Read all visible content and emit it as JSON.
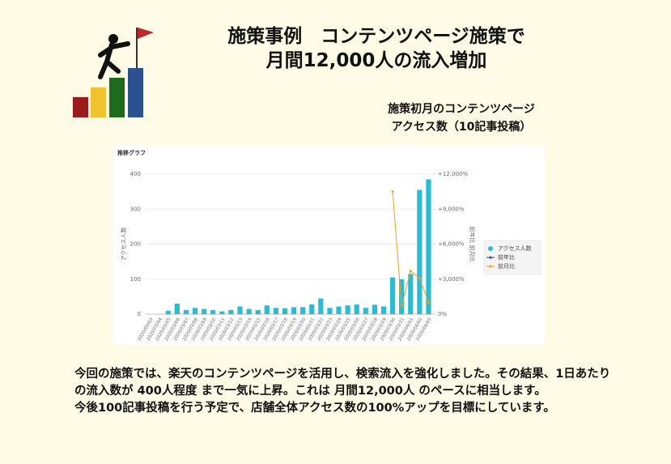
{
  "header": {
    "title_lines": [
      "施策事例　コンテンツページ施策で",
      "月間12,000人の流入増加"
    ]
  },
  "caption": {
    "lines": [
      "施策初月のコンテンツページ",
      "アクセス数（10記事投稿）"
    ]
  },
  "body": {
    "paragraphs": [
      "今回の施策では、楽天のコンテンツページを活用し、検索流入を強化しました。その結果、1日あたりの流入数が 400人程度 まで一気に上昇。これは 月間12,000人 のペースに相当します。",
      "今後100記事投稿を行う予定で、店舗全体アクセス数の100%アップを目標にしています。"
    ]
  },
  "chart_data": {
    "type": "bar",
    "title": "推移グラフ",
    "y_label": "アクセス人数",
    "y2_label": "前年比 前月比",
    "categories": [
      "2020/03/03",
      "2020/03/04",
      "2020/03/05",
      "2020/03/06",
      "2020/03/07",
      "2020/03/08",
      "2020/03/09",
      "2020/03/10",
      "2020/03/11",
      "2020/03/12",
      "2020/03/13",
      "2020/03/14",
      "2020/03/15",
      "2020/03/16",
      "2020/03/17",
      "2020/03/18",
      "2020/03/19",
      "2020/03/20",
      "2020/03/21",
      "2020/03/22",
      "2020/03/23",
      "2020/03/24",
      "2020/03/25",
      "2020/03/26",
      "2020/03/27",
      "2020/03/28",
      "2020/03/29",
      "2020/03/30",
      "2020/03/31",
      "2020/04/01",
      "2020/04/02",
      "2020/04/03"
    ],
    "series": [
      {
        "name": "アクセス人数",
        "color": "#2bbcd4",
        "values": [
          0,
          0,
          10,
          30,
          12,
          18,
          15,
          12,
          8,
          12,
          22,
          15,
          12,
          25,
          18,
          17,
          20,
          20,
          28,
          45,
          18,
          22,
          25,
          28,
          18,
          27,
          22,
          105,
          100,
          115,
          355,
          385
        ]
      },
      {
        "name": "前年比",
        "color": "#2c3e70",
        "axis": "y2",
        "values": [
          null,
          null,
          null,
          null,
          null,
          null,
          null,
          null,
          null,
          null,
          null,
          null,
          null,
          null,
          null,
          null,
          null,
          null,
          null,
          null,
          null,
          null,
          null,
          null,
          null,
          null,
          null,
          null,
          null,
          null,
          null,
          null
        ]
      },
      {
        "name": "前月比",
        "color": "#f0a020",
        "axis": "y2",
        "values": [
          null,
          null,
          null,
          null,
          null,
          null,
          null,
          null,
          null,
          null,
          null,
          null,
          null,
          null,
          null,
          null,
          null,
          null,
          null,
          null,
          null,
          null,
          null,
          null,
          null,
          null,
          null,
          10500,
          700,
          3700,
          3100,
          1000
        ]
      }
    ],
    "ylim": [
      0,
      400
    ],
    "yticks": [
      0,
      100,
      200,
      300,
      400
    ],
    "y2lim": [
      0,
      12000
    ],
    "y2ticks": [
      {
        "value": 0,
        "label": "0%"
      },
      {
        "value": 3000,
        "label": "+3,000%"
      },
      {
        "value": 6000,
        "label": "+6,000%"
      },
      {
        "value": 9000,
        "label": "+9,000%"
      },
      {
        "value": 12000,
        "label": "+12,000%"
      }
    ],
    "grid": true,
    "legend": "right"
  }
}
